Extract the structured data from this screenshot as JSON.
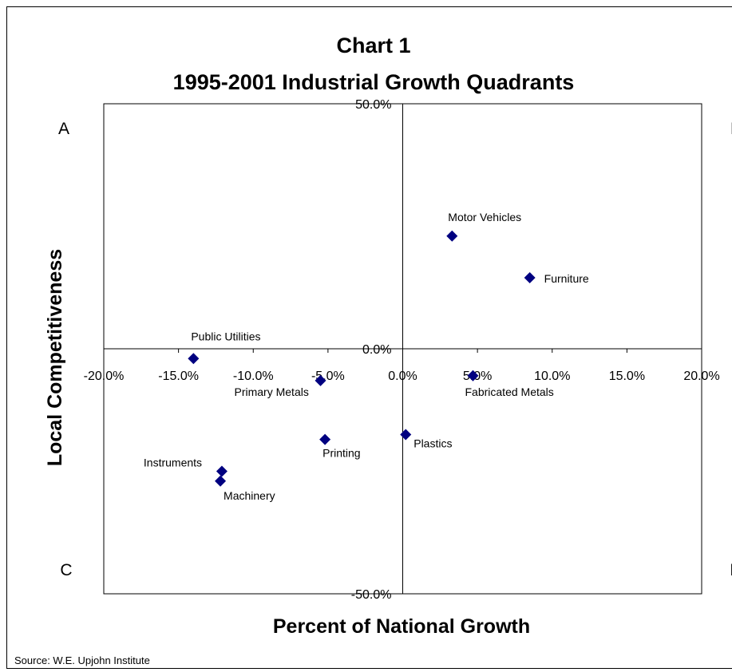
{
  "chart_data": {
    "type": "scatter",
    "title": "Chart 1",
    "subtitle": "1995-2001 Industrial Growth Quadrants",
    "xlabel": "Percent of National Growth",
    "ylabel": "Local Competitiveness",
    "xlim": [
      -0.2,
      0.2
    ],
    "ylim": [
      -0.5,
      0.5
    ],
    "x_ticks": [
      "-20.0%",
      "-15.0%",
      "-10.0%",
      "-5.0%",
      "0.0%",
      "5.0%",
      "10.0%",
      "15.0%",
      "20.0%"
    ],
    "y_ticks": [
      "-50.0%",
      "0.0%",
      "50.0%"
    ],
    "quadrant_labels": [
      "A",
      "B",
      "C",
      "D"
    ],
    "marker_color": "#000080",
    "marker": "diamond",
    "grid": false,
    "points": [
      {
        "label": "Motor Vehicles",
        "x": 0.033,
        "y": 0.23
      },
      {
        "label": "Furniture",
        "x": 0.085,
        "y": 0.145
      },
      {
        "label": "Public Utilities",
        "x": -0.14,
        "y": -0.02
      },
      {
        "label": "Primary Metals",
        "x": -0.055,
        "y": -0.065
      },
      {
        "label": "Fabricated Metals",
        "x": 0.047,
        "y": -0.055
      },
      {
        "label": "Plastics",
        "x": 0.002,
        "y": -0.175
      },
      {
        "label": "Printing",
        "x": -0.052,
        "y": -0.185
      },
      {
        "label": "Instruments",
        "x": -0.121,
        "y": -0.25
      },
      {
        "label": "Machinery",
        "x": -0.122,
        "y": -0.27
      }
    ]
  },
  "source": "Source: W.E. Upjohn Institute"
}
